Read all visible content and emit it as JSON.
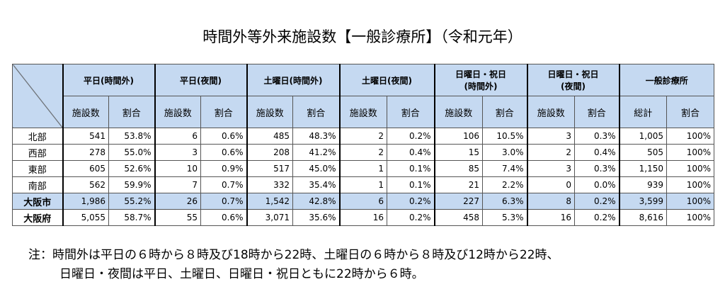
{
  "title": "時間外等外来施設数【一般診療所】（令和元年）",
  "table": {
    "groups": [
      [
        "平日(時間外)"
      ],
      [
        "平日(夜間)"
      ],
      [
        "土曜日(時間外)"
      ],
      [
        "土曜日(夜間)"
      ],
      [
        "日曜日・祝日",
        "(時間外)"
      ],
      [
        "日曜日・祝日",
        "(夜間)"
      ],
      [
        "一般診療所"
      ]
    ],
    "subheaders": [
      "施設数",
      "割合",
      "施設数",
      "割合",
      "施設数",
      "割合",
      "施設数",
      "割合",
      "施設数",
      "割合",
      "施設数",
      "割合",
      "総計",
      "割合"
    ],
    "rows": [
      {
        "label": "北部",
        "cells": [
          "541",
          "53.8%",
          "6",
          "0.6%",
          "485",
          "48.3%",
          "2",
          "0.2%",
          "106",
          "10.5%",
          "3",
          "0.3%",
          "1,005",
          "100%"
        ]
      },
      {
        "label": "西部",
        "cells": [
          "278",
          "55.0%",
          "3",
          "0.6%",
          "208",
          "41.2%",
          "2",
          "0.4%",
          "15",
          "3.0%",
          "2",
          "0.4%",
          "505",
          "100%"
        ]
      },
      {
        "label": "東部",
        "cells": [
          "605",
          "52.6%",
          "10",
          "0.9%",
          "517",
          "45.0%",
          "1",
          "0.1%",
          "85",
          "7.4%",
          "3",
          "0.3%",
          "1,150",
          "100%"
        ]
      },
      {
        "label": "南部",
        "cells": [
          "562",
          "59.9%",
          "7",
          "0.7%",
          "332",
          "35.4%",
          "1",
          "0.1%",
          "21",
          "2.2%",
          "0",
          "0.0%",
          "939",
          "100%"
        ]
      },
      {
        "label": "大阪市",
        "cells": [
          "1,986",
          "55.2%",
          "26",
          "0.7%",
          "1,542",
          "42.8%",
          "6",
          "0.2%",
          "227",
          "6.3%",
          "8",
          "0.2%",
          "3,599",
          "100%"
        ]
      },
      {
        "label": "大阪府",
        "cells": [
          "5,055",
          "58.7%",
          "55",
          "0.6%",
          "3,071",
          "35.6%",
          "16",
          "0.2%",
          "458",
          "5.3%",
          "16",
          "0.2%",
          "8,616",
          "100%"
        ]
      }
    ]
  },
  "note": [
    "注：時間外は平日の６時から８時及び18時から22時、土曜日の６時から８時及び12時から22時、",
    "日曜日・夜間は平日、土曜日、日曜日・祝日ともに22時から６時。"
  ]
}
